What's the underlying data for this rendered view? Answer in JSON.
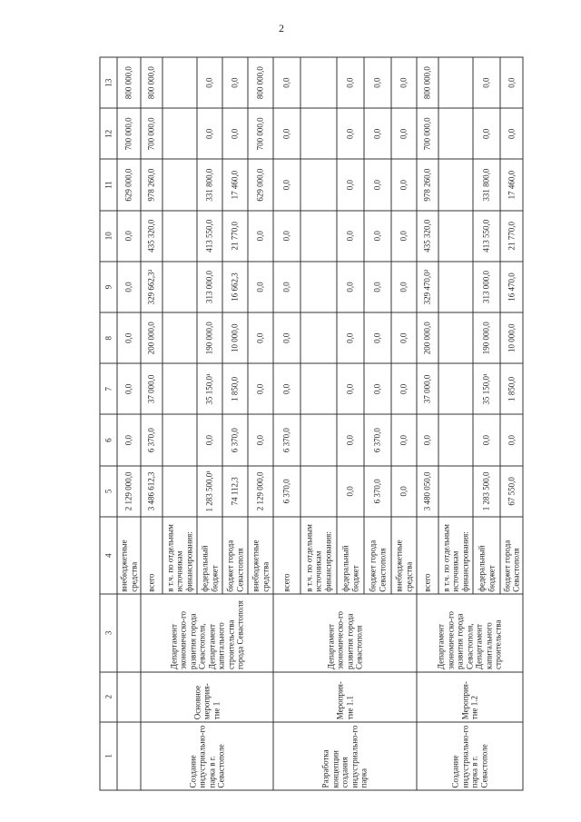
{
  "page_number": "2",
  "table": {
    "headers": [
      "1",
      "2",
      "3",
      "4",
      "5",
      "6",
      "7",
      "8",
      "9",
      "10",
      "11",
      "12",
      "13"
    ],
    "groups": [
      {
        "col1": "",
        "col2": "",
        "col3": "",
        "rows": [
          {
            "source": "внебюджетные средства",
            "values": [
              "2 129 000,0",
              "0,0",
              "0,0",
              "0,0",
              "0,0",
              "0,0",
              "629 000,0",
              "700 000,0",
              "800 000,0"
            ]
          }
        ]
      },
      {
        "col1": "Создание индустриально-го парка в г. Севастополе",
        "col2": "Основное мероприя-тие 1",
        "col3": "Департамент экономическо-го развития города Севастополя, Департамент капитального строительства города Севастополя",
        "rows": [
          {
            "source": "всего",
            "values": [
              "3 486 612,3",
              "6 370,0",
              "37 000,0",
              "200 000,0",
              "329 662,3²",
              "435 320,0",
              "978 260,0",
              "700 000,0",
              "800 000,0"
            ]
          },
          {
            "source": "в т.ч. по отдельным источникам финансирования:",
            "values": [
              "",
              "",
              "",
              "",
              "",
              "",
              "",
              "",
              ""
            ]
          },
          {
            "source": "федеральный бюджет",
            "values": [
              "1 283 500,0¹",
              "0,0",
              "35 150,0¹",
              "190 000,0",
              "313 000,0",
              "413 550,0",
              "331 800,0",
              "0,0",
              "0,0"
            ]
          },
          {
            "source": "бюджет города Севастополя",
            "values": [
              "74 112,3",
              "6 370,0",
              "1 850,0",
              "10 000,0",
              "16 662,3",
              "21 770,0",
              "17 460,0",
              "0,0",
              "0,0"
            ]
          },
          {
            "source": "внебюджетные средства",
            "values": [
              "2 129 000,0",
              "0,0",
              "0,0",
              "0,0",
              "0,0",
              "0,0",
              "629 000,0",
              "700 000,0",
              "800 000,0"
            ]
          }
        ]
      },
      {
        "col1": "Разработка концепции создания индустриально-го парка",
        "col2": "Мероприя-тие 1.1",
        "col3": "Департамент экономическо-го развития города Севастополя",
        "rows": [
          {
            "source": "всего",
            "values": [
              "6 370,0",
              "6 370,0",
              "0,0",
              "0,0",
              "0,0",
              "0,0",
              "0,0",
              "0,0",
              "0,0"
            ]
          },
          {
            "source": "в т.ч. по отдельным источникам финансирования:",
            "values": [
              "",
              "",
              "",
              "",
              "",
              "",
              "",
              "",
              ""
            ]
          },
          {
            "source": "федеральный бюджет",
            "values": [
              "0,0",
              "0,0",
              "0,0",
              "0,0",
              "0,0",
              "0,0",
              "0,0",
              "0,0",
              "0,0"
            ]
          },
          {
            "source": "бюджет города Севастополя",
            "values": [
              "6 370,0",
              "6 370,0",
              "0,0",
              "0,0",
              "0,0",
              "0,0",
              "0,0",
              "0,0",
              "0,0"
            ]
          },
          {
            "source": "внебюджетные средства",
            "values": [
              "0,0",
              "0,0",
              "0,0",
              "0,0",
              "0,0",
              "0,0",
              "0,0",
              "0,0",
              "0,0"
            ]
          }
        ]
      },
      {
        "col1": "Создание индустриально-го парка в г. Севастополе",
        "col2": "Мероприя-тие 1.2",
        "col3": "Департамент экономическо-го развития города Севастополя, Департамент капитального строительства",
        "rows": [
          {
            "source": "всего",
            "values": [
              "3 480 050,0",
              "0,0",
              "37 000,0",
              "200 000,0",
              "329 470,0²",
              "435 320,0",
              "978 260,0",
              "700 000,0",
              "800 000,0"
            ]
          },
          {
            "source": "в т.ч. по отдельным источникам финансирования:",
            "values": [
              "",
              "",
              "",
              "",
              "",
              "",
              "",
              "",
              ""
            ]
          },
          {
            "source": "федеральный бюджет",
            "values": [
              "1 283 500,0",
              "0,0",
              "35 150,0¹",
              "190 000,0",
              "313 000,0",
              "413 550,0",
              "331 800,0",
              "0,0",
              "0,0"
            ]
          },
          {
            "source": "бюджет города Севастополя",
            "values": [
              "67 550,0",
              "0,0",
              "1 850,0",
              "10 000,0",
              "16 470,0",
              "21 770,0",
              "17 460,0",
              "0,0",
              "0,0"
            ]
          }
        ]
      }
    ]
  }
}
